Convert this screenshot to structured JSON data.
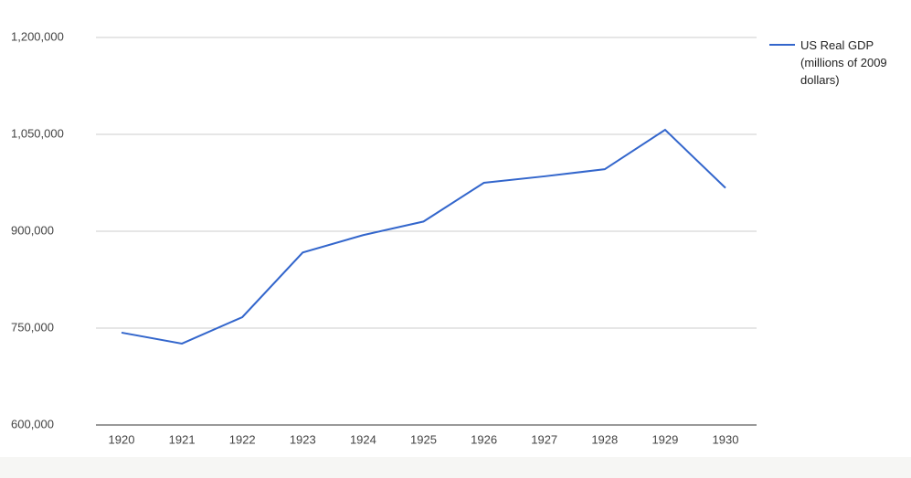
{
  "chart_data": {
    "type": "line",
    "categories": [
      "1920",
      "1921",
      "1922",
      "1923",
      "1924",
      "1925",
      "1926",
      "1927",
      "1928",
      "1929",
      "1930"
    ],
    "series": [
      {
        "name": "US Real GDP (millions of 2009 dollars)",
        "color": "#3366cc",
        "values": [
          743000,
          726000,
          767000,
          867000,
          894000,
          915000,
          975000,
          985000,
          996000,
          1057000,
          967000
        ]
      }
    ],
    "ylim": [
      600000,
      1200000
    ],
    "yticks": [
      {
        "value": 600000,
        "label": "600,000"
      },
      {
        "value": 750000,
        "label": "750,000"
      },
      {
        "value": 900000,
        "label": "900,000"
      },
      {
        "value": 1050000,
        "label": "1,050,000"
      },
      {
        "value": 1200000,
        "label": "1,200,000"
      }
    ],
    "grid": true,
    "legend": "right"
  }
}
